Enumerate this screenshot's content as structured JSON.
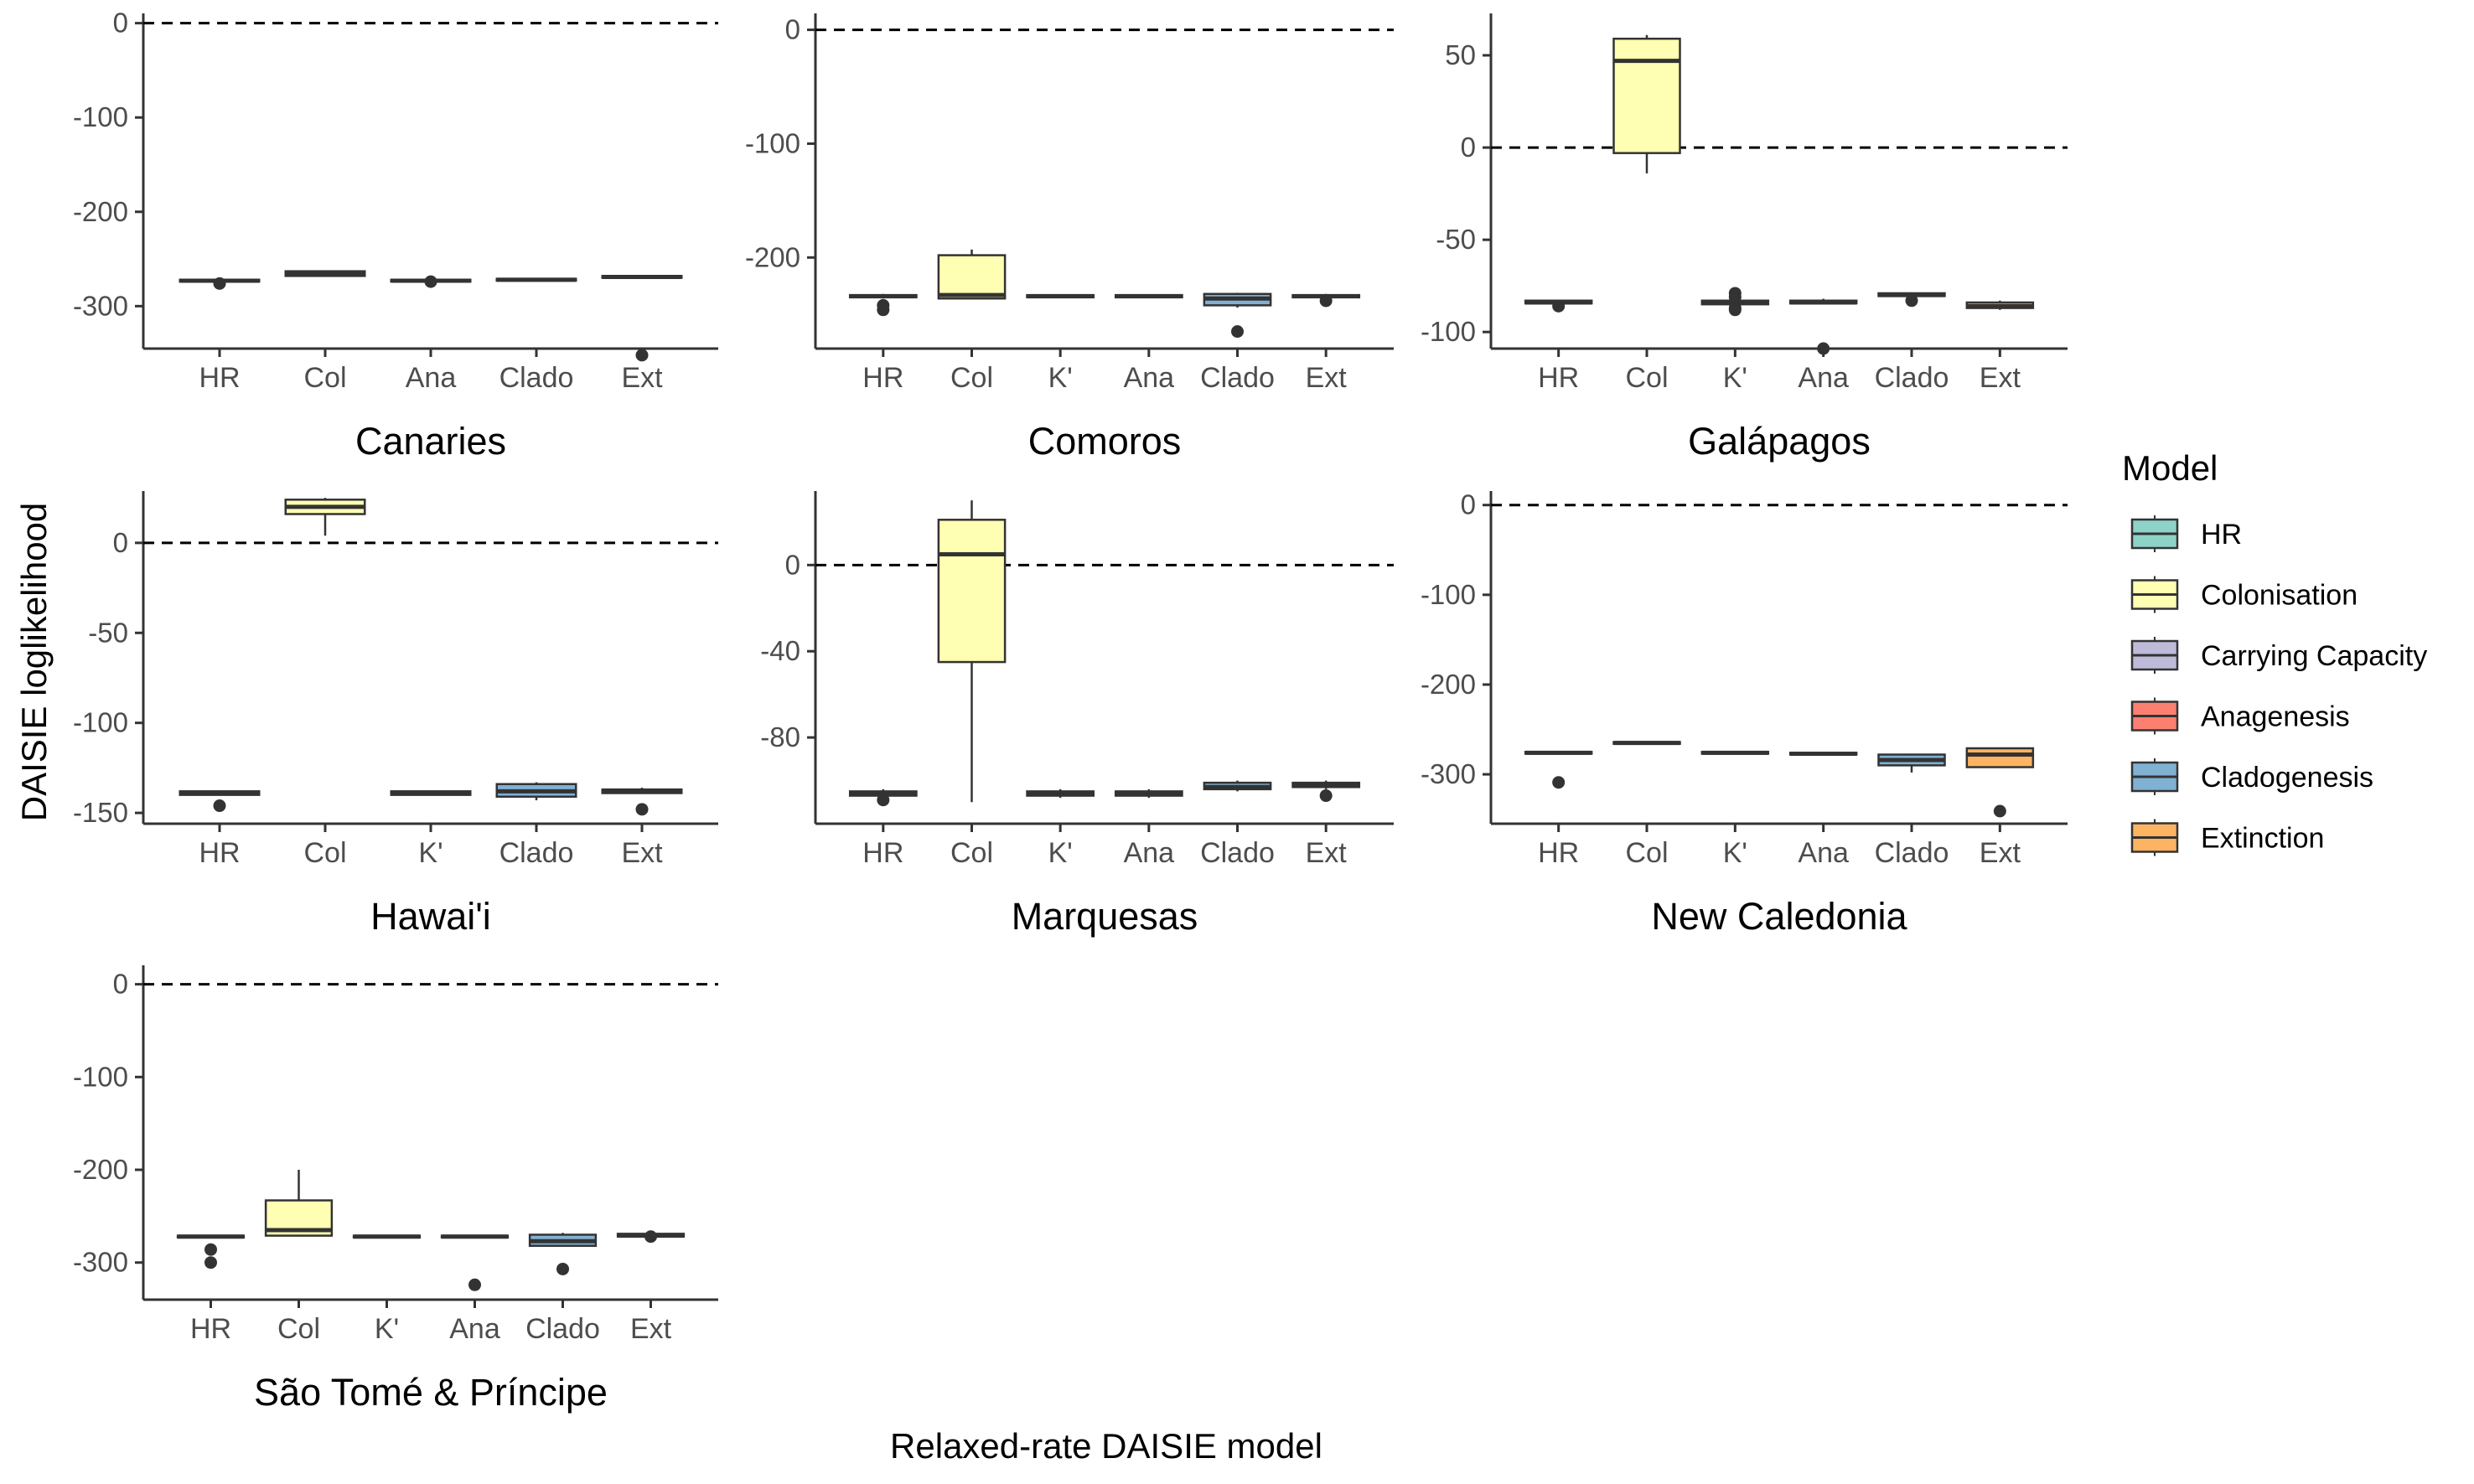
{
  "y_axis_label": "DAISIE loglikelihood",
  "x_axis_label": "Relaxed-rate DAISIE model",
  "legend": {
    "title": "Model",
    "position": "right",
    "items": [
      {
        "label": "HR",
        "color": "#8DD3C7"
      },
      {
        "label": "Colonisation",
        "color": "#FFFFB3"
      },
      {
        "label": "Carrying Capacity",
        "color": "#BEBADA"
      },
      {
        "label": "Anagenesis",
        "color": "#FB8072"
      },
      {
        "label": "Cladogenesis",
        "color": "#80B1D3"
      },
      {
        "label": "Extinction",
        "color": "#FDB462"
      }
    ]
  },
  "chart_data": [
    {
      "type": "box",
      "title": "Canaries",
      "ylim": [
        -345,
        5
      ],
      "yticks": [
        0,
        -100,
        -200,
        -300
      ],
      "reference_line": 0,
      "categories": [
        "HR",
        "Col",
        "Ana",
        "Clado",
        "Ext"
      ],
      "colors": [
        "#8DD3C7",
        "#FFFFB3",
        "#FB8072",
        "#80B1D3",
        "#FDB462"
      ],
      "boxes": [
        {
          "min": -275,
          "q1": -274,
          "median": -273,
          "q3": -272,
          "max": -271,
          "outliers": [
            -276
          ]
        },
        {
          "min": -268,
          "q1": -268,
          "median": -266,
          "q3": -263,
          "max": -262,
          "outliers": []
        },
        {
          "min": -274,
          "q1": -274,
          "median": -273,
          "q3": -272,
          "max": -271,
          "outliers": [
            -274
          ]
        },
        {
          "min": -273,
          "q1": -273,
          "median": -272,
          "q3": -271,
          "max": -271,
          "outliers": []
        },
        {
          "min": -270,
          "q1": -270,
          "median": -269,
          "q3": -268,
          "max": -268,
          "outliers": [
            -352
          ]
        }
      ]
    },
    {
      "type": "box",
      "title": "Comoros",
      "ylim": [
        -280,
        10
      ],
      "yticks": [
        0,
        -100,
        -200
      ],
      "reference_line": 0,
      "categories": [
        "HR",
        "Col",
        "K'",
        "Ana",
        "Clado",
        "Ext"
      ],
      "colors": [
        "#8DD3C7",
        "#FFFFB3",
        "#BEBADA",
        "#FB8072",
        "#80B1D3",
        "#FDB462"
      ],
      "boxes": [
        {
          "min": -236,
          "q1": -235,
          "median": -234,
          "q3": -233,
          "max": -232,
          "outliers": [
            -242,
            -246
          ]
        },
        {
          "min": -236,
          "q1": -236,
          "median": -233,
          "q3": -198,
          "max": -193,
          "outliers": []
        },
        {
          "min": -235,
          "q1": -235,
          "median": -234,
          "q3": -233,
          "max": -233,
          "outliers": []
        },
        {
          "min": -235,
          "q1": -235,
          "median": -234,
          "q3": -233,
          "max": -233,
          "outliers": []
        },
        {
          "min": -244,
          "q1": -242,
          "median": -236,
          "q3": -232,
          "max": -231,
          "outliers": [
            -265
          ]
        },
        {
          "min": -236,
          "q1": -235,
          "median": -234,
          "q3": -233,
          "max": -232,
          "outliers": [
            -238
          ]
        }
      ]
    },
    {
      "type": "box",
      "title": "Galápagos",
      "ylim": [
        -109,
        70
      ],
      "yticks": [
        50,
        0,
        -50,
        -100
      ],
      "reference_line": 0,
      "categories": [
        "HR",
        "Col",
        "K'",
        "Ana",
        "Clado",
        "Ext"
      ],
      "colors": [
        "#8DD3C7",
        "#FFFFB3",
        "#BEBADA",
        "#FB8072",
        "#80B1D3",
        "#FDB462"
      ],
      "boxes": [
        {
          "min": -85,
          "q1": -84.5,
          "median": -84,
          "q3": -83,
          "max": -82.5,
          "outliers": [
            -86
          ]
        },
        {
          "min": -14,
          "q1": -3,
          "median": 47,
          "q3": 59,
          "max": 61,
          "outliers": []
        },
        {
          "min": -86,
          "q1": -85,
          "median": -84,
          "q3": -83,
          "max": -82,
          "outliers": [
            -79,
            -81,
            -87,
            -88
          ]
        },
        {
          "min": -85,
          "q1": -84.5,
          "median": -84,
          "q3": -83,
          "max": -82,
          "outliers": [
            -109
          ]
        },
        {
          "min": -81,
          "q1": -80.5,
          "median": -80,
          "q3": -79,
          "max": -78.5,
          "outliers": [
            -83
          ]
        },
        {
          "min": -88,
          "q1": -87,
          "median": -86,
          "q3": -84,
          "max": -83,
          "outliers": []
        }
      ]
    },
    {
      "type": "box",
      "title": "Hawai'i",
      "ylim": [
        -156,
        26
      ],
      "yticks": [
        0,
        -50,
        -100,
        -150
      ],
      "reference_line": 0,
      "categories": [
        "HR",
        "Col",
        "K'",
        "Clado",
        "Ext"
      ],
      "colors": [
        "#8DD3C7",
        "#FFFFB3",
        "#BEBADA",
        "#80B1D3",
        "#FDB462"
      ],
      "boxes": [
        {
          "min": -140,
          "q1": -140,
          "median": -139,
          "q3": -138,
          "max": -138,
          "outliers": [
            -146
          ]
        },
        {
          "min": 4,
          "q1": 16,
          "median": 20,
          "q3": 24,
          "max": 25,
          "outliers": []
        },
        {
          "min": -140,
          "q1": -140,
          "median": -139,
          "q3": -138,
          "max": -138,
          "outliers": []
        },
        {
          "min": -143,
          "q1": -141,
          "median": -138,
          "q3": -134,
          "max": -133,
          "outliers": []
        },
        {
          "min": -139,
          "q1": -139,
          "median": -138,
          "q3": -137,
          "max": -136,
          "outliers": [
            -148
          ]
        }
      ]
    },
    {
      "type": "box",
      "title": "Marquesas",
      "ylim": [
        -120,
        32
      ],
      "yticks": [
        0,
        -40,
        -80
      ],
      "reference_line": 0,
      "categories": [
        "HR",
        "Col",
        "K'",
        "Ana",
        "Clado",
        "Ext"
      ],
      "colors": [
        "#8DD3C7",
        "#FFFFB3",
        "#BEBADA",
        "#FB8072",
        "#80B1D3",
        "#FDB462"
      ],
      "boxes": [
        {
          "min": -108,
          "q1": -107,
          "median": -106,
          "q3": -105,
          "max": -104,
          "outliers": [
            -109
          ]
        },
        {
          "min": -110,
          "q1": -45,
          "median": 5,
          "q3": 21,
          "max": 30,
          "outliers": []
        },
        {
          "min": -108,
          "q1": -107,
          "median": -106,
          "q3": -105,
          "max": -104,
          "outliers": []
        },
        {
          "min": -108,
          "q1": -107,
          "median": -106,
          "q3": -105,
          "max": -104,
          "outliers": []
        },
        {
          "min": -105,
          "q1": -104,
          "median": -103,
          "q3": -101,
          "max": -100,
          "outliers": []
        },
        {
          "min": -104,
          "q1": -103,
          "median": -102,
          "q3": -101,
          "max": -100,
          "outliers": [
            -107
          ]
        }
      ]
    },
    {
      "type": "box",
      "title": "New Caledonia",
      "ylim": [
        -355,
        10
      ],
      "yticks": [
        0,
        -100,
        -200,
        -300
      ],
      "reference_line": 0,
      "categories": [
        "HR",
        "Col",
        "K'",
        "Ana",
        "Clado",
        "Ext"
      ],
      "colors": [
        "#8DD3C7",
        "#FFFFB3",
        "#BEBADA",
        "#FB8072",
        "#80B1D3",
        "#FDB462"
      ],
      "boxes": [
        {
          "min": -278,
          "q1": -277,
          "median": -276,
          "q3": -275,
          "max": -274,
          "outliers": [
            -309
          ]
        },
        {
          "min": -267,
          "q1": -266,
          "median": -265,
          "q3": -264,
          "max": -263,
          "outliers": []
        },
        {
          "min": -278,
          "q1": -277,
          "median": -276,
          "q3": -275,
          "max": -274,
          "outliers": []
        },
        {
          "min": -279,
          "q1": -278,
          "median": -277,
          "q3": -276,
          "max": -275,
          "outliers": []
        },
        {
          "min": -298,
          "q1": -290,
          "median": -284,
          "q3": -278,
          "max": -277,
          "outliers": []
        },
        {
          "min": -293,
          "q1": -292,
          "median": -278,
          "q3": -271,
          "max": -270,
          "outliers": [
            -341
          ]
        }
      ]
    },
    {
      "type": "box",
      "title": "São Tomé & Príncipe",
      "ylim": [
        -340,
        15
      ],
      "yticks": [
        0,
        -100,
        -200,
        -300
      ],
      "reference_line": 0,
      "categories": [
        "HR",
        "Col",
        "K'",
        "Ana",
        "Clado",
        "Ext"
      ],
      "colors": [
        "#8DD3C7",
        "#FFFFB3",
        "#BEBADA",
        "#FB8072",
        "#80B1D3",
        "#FDB462"
      ],
      "boxes": [
        {
          "min": -274,
          "q1": -273,
          "median": -272,
          "q3": -271,
          "max": -270,
          "outliers": [
            -286,
            -300
          ]
        },
        {
          "min": -272,
          "q1": -271,
          "median": -265,
          "q3": -233,
          "max": -200,
          "outliers": []
        },
        {
          "min": -274,
          "q1": -273,
          "median": -272,
          "q3": -271,
          "max": -270,
          "outliers": []
        },
        {
          "min": -274,
          "q1": -273,
          "median": -272,
          "q3": -271,
          "max": -270,
          "outliers": [
            -324
          ]
        },
        {
          "min": -283,
          "q1": -282,
          "median": -277,
          "q3": -270,
          "max": -268,
          "outliers": [
            -307
          ]
        },
        {
          "min": -273,
          "q1": -272,
          "median": -271,
          "q3": -269,
          "max": -268,
          "outliers": [
            -272
          ]
        }
      ]
    }
  ]
}
